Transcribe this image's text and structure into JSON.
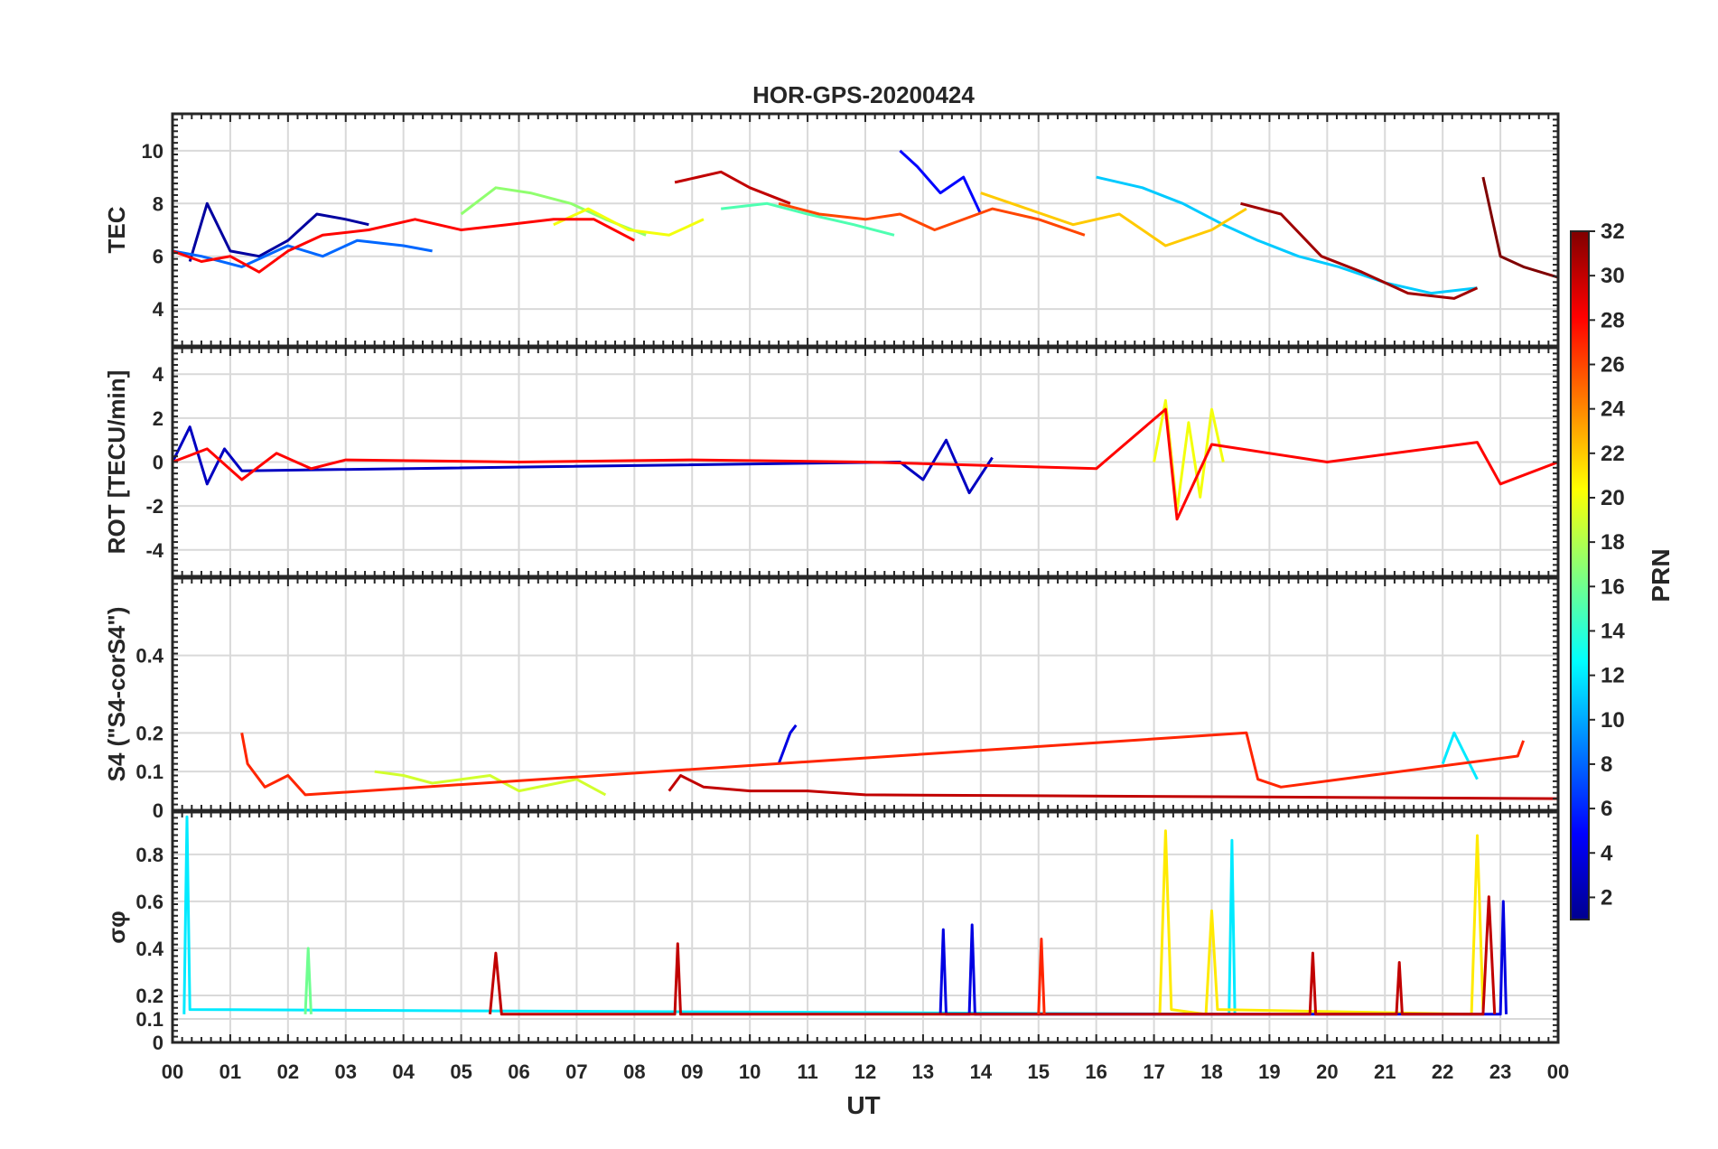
{
  "chart_data": {
    "type": "line",
    "title": "HOR-GPS-20200424",
    "xlabel": "UT",
    "x_tick_labels": [
      "00",
      "01",
      "02",
      "03",
      "04",
      "05",
      "06",
      "07",
      "08",
      "09",
      "10",
      "11",
      "12",
      "13",
      "14",
      "15",
      "16",
      "17",
      "18",
      "19",
      "20",
      "21",
      "22",
      "23",
      "00"
    ],
    "xlim_hours": [
      0,
      24
    ],
    "grid": true,
    "colormap": "jet",
    "colorbar": {
      "label": "PRN",
      "min": 1,
      "max": 32,
      "tick_labels": [
        "2",
        "4",
        "6",
        "8",
        "10",
        "12",
        "14",
        "16",
        "18",
        "20",
        "22",
        "24",
        "26",
        "28",
        "30",
        "32"
      ],
      "tick_values": [
        2,
        4,
        6,
        8,
        10,
        12,
        14,
        16,
        18,
        20,
        22,
        24,
        26,
        28,
        30,
        32
      ]
    },
    "panels": [
      {
        "key": "tec",
        "ylabel": "TEC",
        "ylim": [
          2.6,
          11.4
        ],
        "y_tick_values": [
          4,
          6,
          8,
          10
        ],
        "y_tick_labels": [
          "4",
          "6",
          "8",
          "10"
        ],
        "series": [
          {
            "prn": 2,
            "x": [
              0.3,
              0.6,
              1.0,
              1.5,
              2.0,
              2.5,
              3.0,
              3.4
            ],
            "y": [
              5.8,
              8.0,
              6.2,
              6.0,
              6.6,
              7.6,
              7.4,
              7.2
            ]
          },
          {
            "prn": 5,
            "x": [
              12.6,
              12.9,
              13.3,
              13.7,
              14.0
            ],
            "y": [
              10.0,
              9.4,
              8.4,
              9.0,
              7.6
            ]
          },
          {
            "prn": 8,
            "x": [
              0.0,
              0.5,
              1.2,
              2.0,
              2.6,
              3.2,
              4.0,
              4.5
            ],
            "y": [
              6.2,
              6.0,
              5.6,
              6.4,
              6.0,
              6.6,
              6.4,
              6.2
            ]
          },
          {
            "prn": 11,
            "x": [
              16.0,
              16.8,
              17.5,
              18.2,
              18.8,
              19.5,
              20.2,
              21.0,
              21.8,
              22.6
            ],
            "y": [
              9.0,
              8.6,
              8.0,
              7.2,
              6.6,
              6.0,
              5.6,
              5.0,
              4.6,
              4.8
            ]
          },
          {
            "prn": 15,
            "x": [
              9.5,
              10.3,
              11.0,
              11.8,
              12.5
            ],
            "y": [
              7.8,
              8.0,
              7.6,
              7.2,
              6.8
            ]
          },
          {
            "prn": 17,
            "x": [
              5.0,
              5.6,
              6.2,
              6.9,
              7.5,
              8.2
            ],
            "y": [
              7.6,
              8.6,
              8.4,
              8.0,
              7.4,
              6.8
            ]
          },
          {
            "prn": 20,
            "x": [
              6.6,
              7.2,
              7.9,
              8.6,
              9.2
            ],
            "y": [
              7.2,
              7.8,
              7.0,
              6.8,
              7.4
            ]
          },
          {
            "prn": 22,
            "x": [
              14.0,
              14.8,
              15.6,
              16.4,
              17.2,
              18.0,
              18.6
            ],
            "y": [
              8.4,
              7.8,
              7.2,
              7.6,
              6.4,
              7.0,
              7.8
            ]
          },
          {
            "prn": 26,
            "x": [
              10.5,
              11.2,
              12.0,
              12.6,
              13.2,
              14.2,
              15.0,
              15.8
            ],
            "y": [
              8.0,
              7.6,
              7.4,
              7.6,
              7.0,
              7.8,
              7.4,
              6.8
            ]
          },
          {
            "prn": 28,
            "x": [
              0.0,
              0.5,
              1.0,
              1.5,
              2.0,
              2.6,
              3.4,
              4.2,
              5.0,
              5.8,
              6.6,
              7.3,
              8.0
            ],
            "y": [
              6.2,
              5.8,
              6.0,
              5.4,
              6.2,
              6.8,
              7.0,
              7.4,
              7.0,
              7.2,
              7.4,
              7.4,
              6.6
            ]
          },
          {
            "prn": 30,
            "x": [
              8.7,
              9.1,
              9.5,
              10.0,
              10.7
            ],
            "y": [
              8.8,
              9.0,
              9.2,
              8.6,
              8.0
            ]
          },
          {
            "prn": 31,
            "x": [
              18.5,
              19.2,
              19.9,
              20.6,
              21.4,
              22.2,
              22.6
            ],
            "y": [
              8.0,
              7.6,
              6.0,
              5.4,
              4.6,
              4.4,
              4.8
            ]
          },
          {
            "prn": 32,
            "x": [
              22.7,
              23.0,
              23.4,
              24.0
            ],
            "y": [
              9.0,
              6.0,
              5.6,
              5.2
            ]
          }
        ]
      },
      {
        "key": "rot",
        "ylabel": "ROT [TECU/min]",
        "ylim": [
          -5.2,
          5.2
        ],
        "y_tick_values": [
          -4,
          -2,
          0,
          2,
          4
        ],
        "y_tick_labels": [
          "-4",
          "-2",
          "0",
          "2",
          "4"
        ],
        "series": [
          {
            "prn": 3,
            "x": [
              0.0,
              0.3,
              0.6,
              0.9,
              1.2,
              12.6,
              13.0,
              13.4,
              13.8,
              14.2
            ],
            "y": [
              0.0,
              1.6,
              -1.0,
              0.6,
              -0.4,
              0.0,
              -0.8,
              1.0,
              -1.4,
              0.2
            ]
          },
          {
            "prn": 20,
            "x": [
              17.0,
              17.2,
              17.4,
              17.6,
              17.8,
              18.0,
              18.2
            ],
            "y": [
              0.0,
              2.8,
              -2.2,
              1.8,
              -1.6,
              2.4,
              0.0
            ]
          },
          {
            "prn": 28,
            "x": [
              0.0,
              0.6,
              1.2,
              1.8,
              2.4,
              3.0,
              6.0,
              9.0,
              12.0,
              16.0,
              17.2,
              17.4,
              18.0,
              20.0,
              22.6,
              23.0,
              24.0
            ],
            "y": [
              0.0,
              0.6,
              -0.8,
              0.4,
              -0.3,
              0.1,
              0.0,
              0.1,
              0.0,
              -0.3,
              2.4,
              -2.6,
              0.8,
              0.0,
              0.9,
              -1.0,
              0.0
            ]
          }
        ]
      },
      {
        "key": "s4",
        "ylabel": "S4 (\"S4-corS4\")",
        "ylim": [
          0,
          0.6
        ],
        "y_tick_values": [
          0,
          0.1,
          0.2,
          0.4
        ],
        "y_tick_labels": [
          "0",
          "0.1",
          "0.2",
          "0.4"
        ],
        "series": [
          {
            "prn": 4,
            "x": [
              10.5,
              10.6,
              10.7,
              10.8
            ],
            "y": [
              0.12,
              0.16,
              0.2,
              0.22
            ]
          },
          {
            "prn": 12,
            "x": [
              22.0,
              22.2,
              22.4,
              22.6
            ],
            "y": [
              0.12,
              0.2,
              0.14,
              0.08
            ]
          },
          {
            "prn": 19,
            "x": [
              3.5,
              4.0,
              4.5,
              5.5,
              6.0,
              7.0,
              7.5
            ],
            "y": [
              0.1,
              0.09,
              0.07,
              0.09,
              0.05,
              0.08,
              0.04
            ]
          },
          {
            "prn": 27,
            "x": [
              1.2,
              1.3,
              1.6,
              2.0,
              2.3,
              18.6,
              18.8,
              19.2,
              23.3,
              23.4
            ],
            "y": [
              0.2,
              0.12,
              0.06,
              0.09,
              0.04,
              0.2,
              0.08,
              0.06,
              0.14,
              0.18
            ]
          },
          {
            "prn": 30,
            "x": [
              8.6,
              8.8,
              9.2,
              10.0,
              11.0,
              12.0,
              24.0
            ],
            "y": [
              0.05,
              0.09,
              0.06,
              0.05,
              0.05,
              0.04,
              0.03
            ]
          }
        ]
      },
      {
        "key": "sigma_phi",
        "ylabel": "σφ",
        "ylim": [
          0,
          0.98
        ],
        "y_tick_values": [
          0,
          0.1,
          0.2,
          0.4,
          0.6,
          0.8
        ],
        "y_tick_labels": [
          "0",
          "0.1",
          "0.2",
          "0.4",
          "0.6",
          "0.8"
        ],
        "series": [
          {
            "prn": 12,
            "x": [
              0.2,
              0.25,
              0.3,
              18.3,
              18.35,
              18.4
            ],
            "y": [
              0.12,
              0.96,
              0.14,
              0.12,
              0.86,
              0.12
            ]
          },
          {
            "prn": 16,
            "x": [
              2.3,
              2.35,
              2.4
            ],
            "y": [
              0.12,
              0.4,
              0.12
            ]
          },
          {
            "prn": 21,
            "x": [
              17.1,
              17.2,
              17.3,
              17.9,
              18.0,
              18.1,
              22.5,
              22.6,
              22.7
            ],
            "y": [
              0.12,
              0.9,
              0.14,
              0.12,
              0.56,
              0.14,
              0.12,
              0.88,
              0.14
            ]
          },
          {
            "prn": 4,
            "x": [
              13.3,
              13.35,
              13.4,
              13.8,
              13.85,
              13.9,
              23.0,
              23.05,
              23.1
            ],
            "y": [
              0.12,
              0.48,
              0.12,
              0.12,
              0.5,
              0.12,
              0.12,
              0.6,
              0.12
            ]
          },
          {
            "prn": 30,
            "x": [
              5.5,
              5.6,
              5.7,
              8.7,
              8.75,
              8.8,
              19.7,
              19.75,
              19.8,
              21.2,
              21.25,
              21.3,
              22.7,
              22.8,
              22.9
            ],
            "y": [
              0.12,
              0.38,
              0.12,
              0.12,
              0.42,
              0.12,
              0.12,
              0.38,
              0.12,
              0.12,
              0.34,
              0.12,
              0.12,
              0.62,
              0.12
            ]
          },
          {
            "prn": 27,
            "x": [
              15.0,
              15.05,
              15.1
            ],
            "y": [
              0.12,
              0.44,
              0.12
            ]
          }
        ]
      }
    ]
  }
}
